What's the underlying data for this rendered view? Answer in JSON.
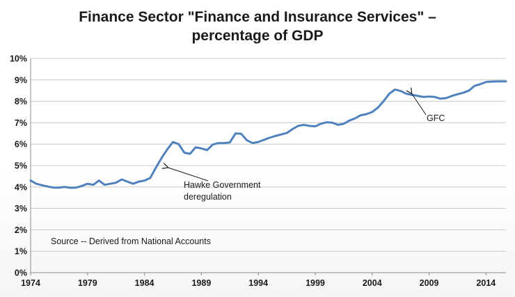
{
  "chart_data": {
    "type": "line",
    "title": [
      "Finance Sector \"Finance and Insurance Services\" –",
      "percentage of GDP"
    ],
    "xlabel": "",
    "ylabel": "",
    "xlim": [
      1974,
      2015.75
    ],
    "ylim": [
      0,
      10
    ],
    "x_ticks": [
      1974,
      1979,
      1984,
      1989,
      1994,
      1999,
      2004,
      2009,
      2014
    ],
    "x_tick_labels": [
      "1974",
      "1979",
      "1984",
      "1989",
      "1994",
      "1999",
      "2004",
      "2009",
      "2014"
    ],
    "y_ticks": [
      0,
      1,
      2,
      3,
      4,
      5,
      6,
      7,
      8,
      9,
      10
    ],
    "y_tick_labels": [
      "0%",
      "1%",
      "2%",
      "3%",
      "4%",
      "5%",
      "6%",
      "7%",
      "8%",
      "9%",
      "10%"
    ],
    "grid": true,
    "line_color": "#4f81bd",
    "series": [
      {
        "x": [
          1974.0,
          1974.5,
          1975.0,
          1975.5,
          1976.0,
          1976.5,
          1977.0,
          1977.5,
          1978.0,
          1978.5,
          1979.0,
          1979.5,
          1980.0,
          1980.5,
          1981.0,
          1981.5,
          1982.0,
          1982.5,
          1983.0,
          1983.5,
          1984.0,
          1984.5,
          1985.0,
          1985.5,
          1986.0,
          1986.5,
          1987.0,
          1987.5,
          1988.0,
          1988.5,
          1989.0,
          1989.5,
          1990.0,
          1990.5,
          1991.0,
          1991.5,
          1992.0,
          1992.5,
          1993.0,
          1993.5,
          1994.0,
          1994.5,
          1995.0,
          1995.5,
          1996.0,
          1996.5,
          1997.0,
          1997.5,
          1998.0,
          1998.5,
          1999.0,
          1999.5,
          2000.0,
          2000.5,
          2001.0,
          2001.5,
          2002.0,
          2002.5,
          2003.0,
          2003.5,
          2004.0,
          2004.5,
          2005.0,
          2005.5,
          2006.0,
          2006.5,
          2007.0,
          2007.5,
          2008.0,
          2008.5,
          2009.0,
          2009.5,
          2010.0,
          2010.5,
          2011.0,
          2011.5,
          2012.0,
          2012.5,
          2013.0,
          2013.5,
          2014.0,
          2014.5,
          2015.0,
          2015.75
        ],
        "values": [
          4.3,
          4.15,
          4.08,
          4.02,
          3.97,
          3.97,
          4.0,
          3.96,
          3.97,
          4.05,
          4.15,
          4.1,
          4.3,
          4.1,
          4.15,
          4.2,
          4.35,
          4.25,
          4.15,
          4.25,
          4.3,
          4.42,
          4.9,
          5.35,
          5.75,
          6.1,
          6.0,
          5.6,
          5.55,
          5.85,
          5.8,
          5.72,
          5.98,
          6.05,
          6.05,
          6.08,
          6.5,
          6.48,
          6.18,
          6.05,
          6.1,
          6.2,
          6.3,
          6.38,
          6.45,
          6.52,
          6.7,
          6.85,
          6.9,
          6.85,
          6.83,
          6.95,
          7.02,
          7.0,
          6.9,
          6.95,
          7.1,
          7.2,
          7.35,
          7.4,
          7.5,
          7.7,
          8.0,
          8.35,
          8.55,
          8.48,
          8.35,
          8.3,
          8.25,
          8.2,
          8.22,
          8.2,
          8.12,
          8.15,
          8.25,
          8.33,
          8.4,
          8.5,
          8.72,
          8.8,
          8.9,
          8.92,
          8.93,
          8.93
        ]
      }
    ],
    "annotations": [
      {
        "lines": [
          "Hawke Government",
          "deregulation"
        ],
        "point_x": 1985.9,
        "point_y": 5.0
      },
      {
        "lines": [
          "GFC"
        ],
        "point_x": 2007.3,
        "point_y": 8.45
      }
    ],
    "source_note": "Source -- Derived  from National Accounts"
  }
}
